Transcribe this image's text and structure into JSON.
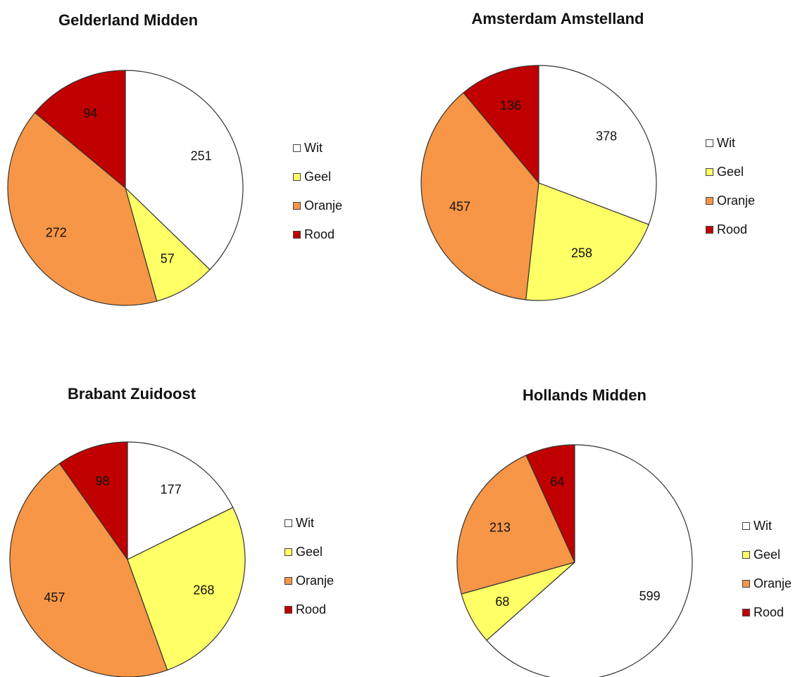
{
  "colors": {
    "Wit": "#ffffff",
    "Geel": "#ffff66",
    "Oranje": "#f79646",
    "Rood": "#c00000"
  },
  "legend": [
    "Wit",
    "Geel",
    "Oranje",
    "Rood"
  ],
  "chart_data": [
    {
      "type": "pie",
      "title": "Gelderland Midden",
      "categories": [
        "Wit",
        "Geel",
        "Oranje",
        "Rood"
      ],
      "values": [
        251,
        57,
        272,
        94
      ]
    },
    {
      "type": "pie",
      "title": "Amsterdam Amstelland",
      "categories": [
        "Wit",
        "Geel",
        "Oranje",
        "Rood"
      ],
      "values": [
        378,
        258,
        457,
        136
      ]
    },
    {
      "type": "pie",
      "title": "Brabant Zuidoost",
      "categories": [
        "Wit",
        "Geel",
        "Oranje",
        "Rood"
      ],
      "values": [
        177,
        268,
        457,
        98
      ]
    },
    {
      "type": "pie",
      "title": "Hollands Midden",
      "categories": [
        "Wit",
        "Geel",
        "Oranje",
        "Rood"
      ],
      "values": [
        599,
        68,
        213,
        64
      ]
    }
  ]
}
